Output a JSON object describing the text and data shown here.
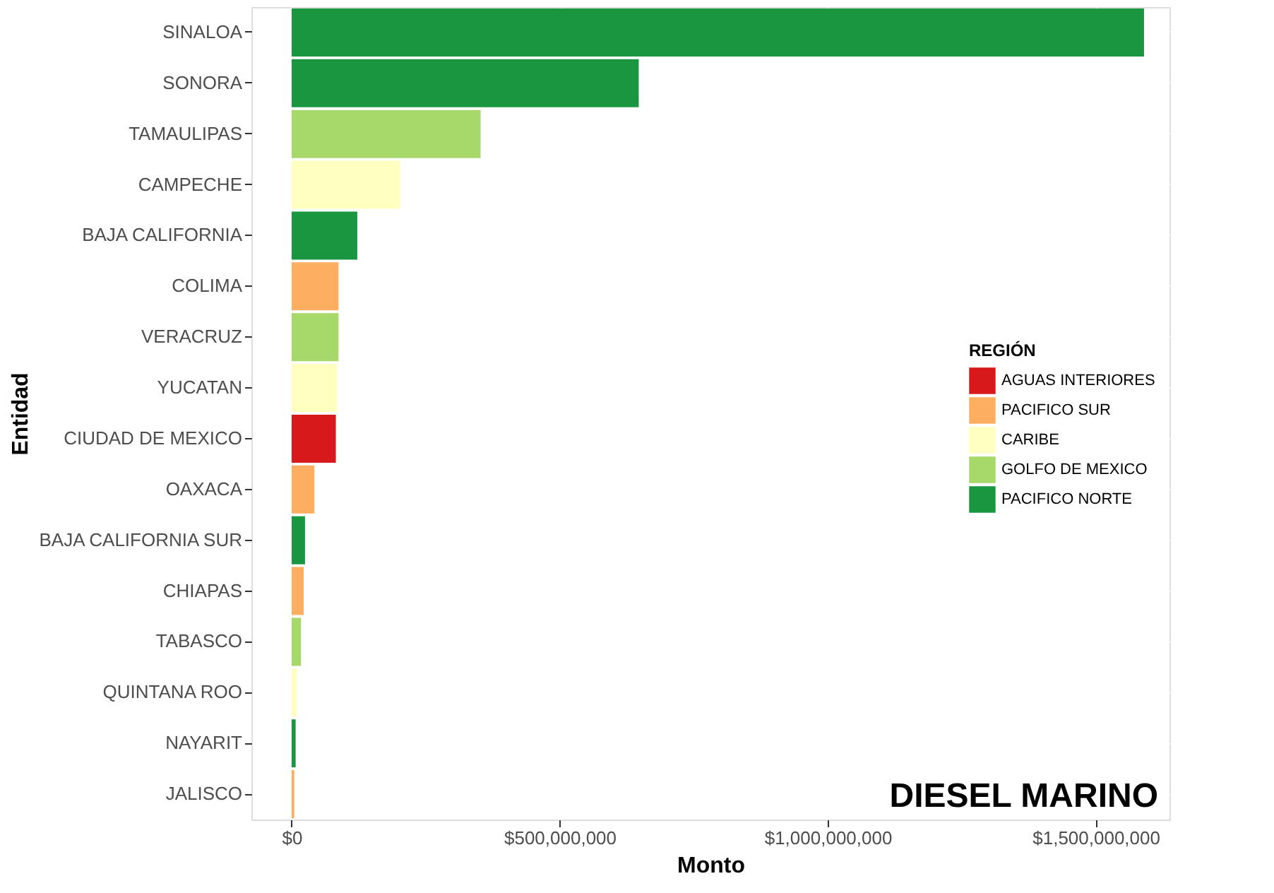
{
  "chart_data": {
    "type": "bar",
    "orientation": "horizontal",
    "xlabel": "Monto",
    "ylabel": "Entidad",
    "legend_title": "REGIÓN",
    "legend": "right",
    "grid": true,
    "categories": [
      "SINALOA",
      "SONORA",
      "TAMAULIPAS",
      "CAMPECHE",
      "BAJA CALIFORNIA",
      "COLIMA",
      "VERACRUZ",
      "YUCATAN",
      "CIUDAD DE MEXICO",
      "OAXACA",
      "BAJA CALIFORNIA SUR",
      "CHIAPAS",
      "TABASCO",
      "QUINTANA ROO",
      "NAYARIT",
      "JALISCO"
    ],
    "series": [
      {
        "name": "AGUAS INTERIORES",
        "color": "#d7191c",
        "values": [
          null,
          null,
          null,
          null,
          null,
          null,
          null,
          null,
          82500000,
          null,
          null,
          null,
          null,
          null,
          null,
          null
        ]
      },
      {
        "name": "PACIFICO SUR",
        "color": "#fdae61",
        "values": [
          null,
          null,
          null,
          null,
          null,
          87500000,
          null,
          null,
          null,
          42500000,
          null,
          22500000,
          null,
          null,
          null,
          5000000
        ]
      },
      {
        "name": "CARIBE",
        "color": "#ffffbf",
        "values": [
          null,
          null,
          null,
          202500000,
          null,
          null,
          null,
          85000000,
          null,
          null,
          null,
          null,
          null,
          10000000,
          null,
          null
        ]
      },
      {
        "name": "GOLFO DE MEXICO",
        "color": "#a6d96a",
        "values": [
          null,
          null,
          352500000,
          null,
          null,
          null,
          87500000,
          null,
          null,
          null,
          null,
          null,
          17500000,
          null,
          null,
          null
        ]
      },
      {
        "name": "PACIFICO NORTE",
        "color": "#1a9641",
        "values": [
          1590000000,
          647500000,
          null,
          null,
          122500000,
          null,
          null,
          null,
          null,
          null,
          25000000,
          null,
          null,
          null,
          7500000,
          null
        ]
      }
    ],
    "xlim": [
      -75000000,
      1637500000
    ],
    "xticks": [
      {
        "value": 0,
        "label": "$0"
      },
      {
        "value": 500000000,
        "label": "$500,000,000"
      },
      {
        "value": 1000000000,
        "label": "$1,000,000,000"
      },
      {
        "value": 1500000000,
        "label": "$1,500,000,000"
      }
    ],
    "annotations": [
      "DIESEL MARINO"
    ]
  }
}
